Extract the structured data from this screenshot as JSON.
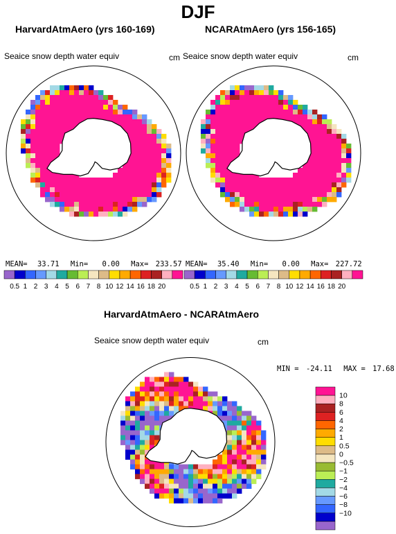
{
  "page_title": "DJF",
  "variable": "Seaice snow depth water equiv",
  "units": "cm",
  "colors": {
    "land_fill": "#ffffff",
    "coast": "#000000",
    "background": "#ffffff"
  },
  "panels": [
    {
      "title": "HarvardAtmAero (yrs 160-169)",
      "mean_label": "MEAN=",
      "mean": "33.71",
      "min_label": "Min=",
      "min": "0.00",
      "max_label": "Max=",
      "max": "233.57"
    },
    {
      "title": "NCARAtmAero (yrs 156-165)",
      "mean_label": "MEAN=",
      "mean": "35.40",
      "min_label": "Min=",
      "min": "0.00",
      "max_label": "Max=",
      "max": "227.72"
    }
  ],
  "difference": {
    "title": "HarvardAtmAero - NCARAtmAero",
    "min_label": "MIN =",
    "min": "-24.11",
    "max_label": "MAX =",
    "max": "17.68"
  },
  "chart_data": [
    {
      "type": "heatmap",
      "projection": "south-polar-stereographic",
      "title": "HarvardAtmAero (yrs 160-169)",
      "variable": "Seaice snow depth water equiv",
      "units": "cm",
      "colorbar": {
        "orientation": "horizontal",
        "levels": [
          "0.5",
          "1",
          "2",
          "3",
          "4",
          "5",
          "6",
          "7",
          "8",
          "10",
          "12",
          "14",
          "16",
          "18",
          "20"
        ],
        "colors": [
          "#9966cc",
          "#0000cc",
          "#3366ff",
          "#6699ff",
          "#a3d9e6",
          "#1faaa0",
          "#66bb33",
          "#bbee55",
          "#f5e6c0",
          "#ddbb88",
          "#ffdd00",
          "#ffaa00",
          "#ff6600",
          "#dd2222",
          "#aa2222",
          "#ffb0c0",
          "#ff1493"
        ]
      },
      "stats": {
        "mean": 33.71,
        "min": 0.0,
        "max": 233.57
      }
    },
    {
      "type": "heatmap",
      "projection": "south-polar-stereographic",
      "title": "NCARAtmAero (yrs 156-165)",
      "variable": "Seaice snow depth water equiv",
      "units": "cm",
      "colorbar": {
        "orientation": "horizontal",
        "levels": [
          "0.5",
          "1",
          "2",
          "3",
          "4",
          "5",
          "6",
          "7",
          "8",
          "10",
          "12",
          "14",
          "16",
          "18",
          "20"
        ],
        "colors": [
          "#9966cc",
          "#0000cc",
          "#3366ff",
          "#6699ff",
          "#a3d9e6",
          "#1faaa0",
          "#66bb33",
          "#bbee55",
          "#f5e6c0",
          "#ddbb88",
          "#ffdd00",
          "#ffaa00",
          "#ff6600",
          "#dd2222",
          "#aa2222",
          "#ffb0c0",
          "#ff1493"
        ]
      },
      "stats": {
        "mean": 35.4,
        "min": 0.0,
        "max": 227.72
      }
    },
    {
      "type": "heatmap",
      "projection": "south-polar-stereographic",
      "title": "HarvardAtmAero - NCARAtmAero",
      "variable": "Seaice snow depth water equiv",
      "units": "cm",
      "colorbar": {
        "orientation": "vertical",
        "levels": [
          "10",
          "8",
          "6",
          "4",
          "2",
          "1",
          "0.5",
          "0",
          "-0.5",
          "-1",
          "-2",
          "-4",
          "-6",
          "-8",
          "-10"
        ],
        "colors": [
          "#ff1493",
          "#ffb0c0",
          "#aa2222",
          "#dd2222",
          "#ff6600",
          "#ffaa00",
          "#ffdd00",
          "#ddbb88",
          "#f5e6c0",
          "#99bb33",
          "#bbee55",
          "#1faaa0",
          "#a3d9e6",
          "#6699ff",
          "#3366ff",
          "#0000cc",
          "#9966cc"
        ]
      },
      "stats": {
        "min": -24.11,
        "max": 17.68
      }
    }
  ]
}
